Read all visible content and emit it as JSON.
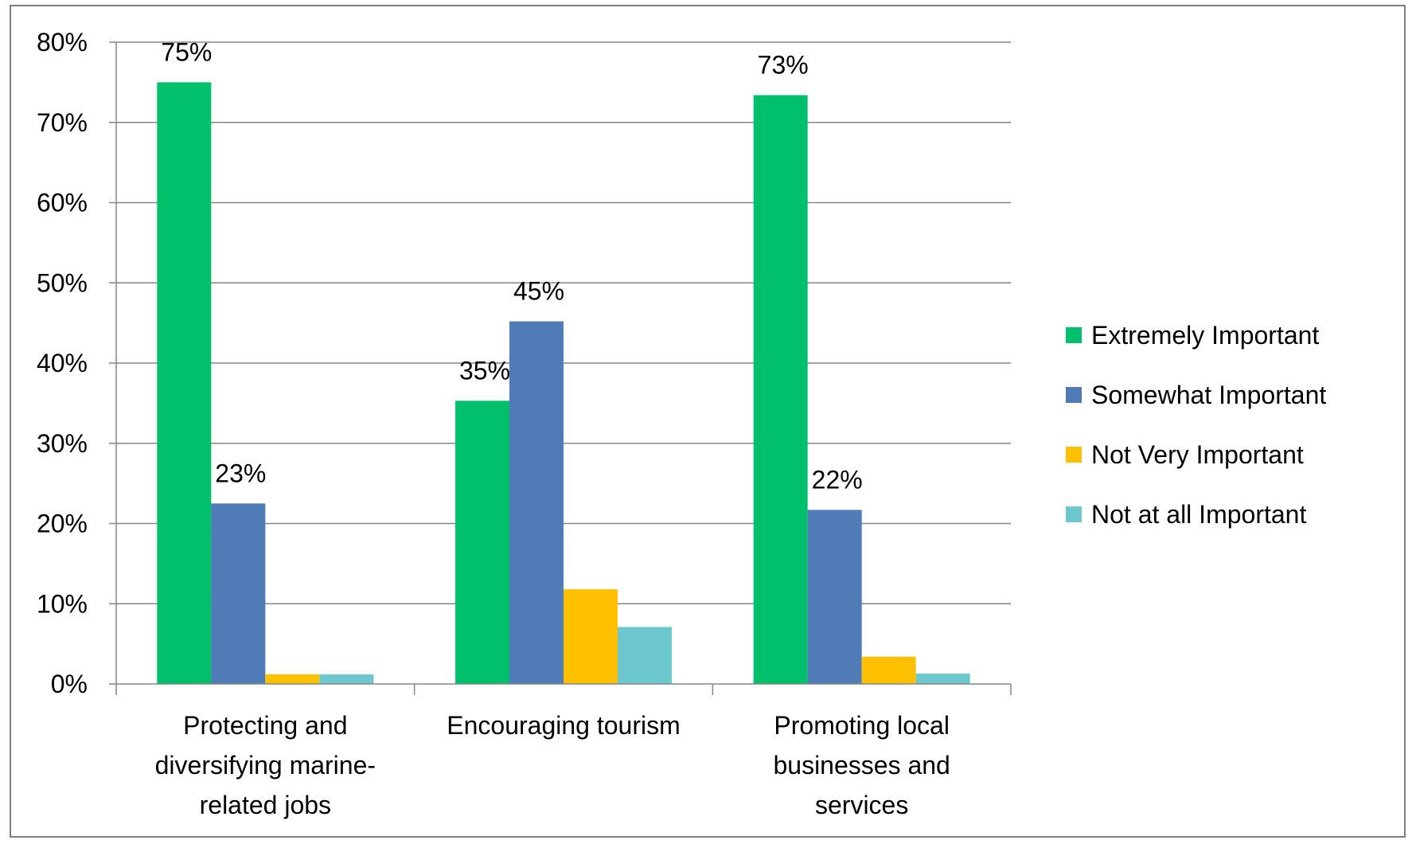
{
  "chart_data": {
    "type": "bar",
    "title": "",
    "xlabel": "",
    "ylabel": "",
    "categories": [
      "Protecting and diversifying marine-related jobs",
      "Encouraging tourism",
      "Promoting local businesses and services"
    ],
    "category_lines": [
      [
        "Protecting and",
        "diversifying marine-",
        "related jobs"
      ],
      [
        "Encouraging tourism"
      ],
      [
        "Promoting local",
        "businesses and",
        "services"
      ]
    ],
    "series": [
      {
        "name": "Extremely Important",
        "color": "#00c06b",
        "values": [
          75,
          35.3,
          73.4
        ],
        "labels": [
          "75%",
          "35%",
          "73%"
        ]
      },
      {
        "name": "Somewhat Important",
        "color": "#4f7bb6",
        "values": [
          22.5,
          45.2,
          21.7
        ],
        "labels": [
          "23%",
          "45%",
          "22%"
        ]
      },
      {
        "name": "Not Very Important",
        "color": "#ffc000",
        "values": [
          1.2,
          11.8,
          3.4
        ],
        "labels": [
          "",
          "",
          ""
        ]
      },
      {
        "name": "Not at all Important",
        "color": "#6cc8ce",
        "values": [
          1.2,
          7.1,
          1.3
        ],
        "labels": [
          "",
          "",
          ""
        ]
      }
    ],
    "ylim": [
      0,
      80
    ],
    "yticks": [
      0,
      10,
      20,
      30,
      40,
      50,
      60,
      70,
      80
    ],
    "ytick_labels": [
      "0%",
      "10%",
      "20%",
      "30%",
      "40%",
      "50%",
      "60%",
      "70%",
      "80%"
    ],
    "grid": true,
    "legend_position": "right"
  }
}
